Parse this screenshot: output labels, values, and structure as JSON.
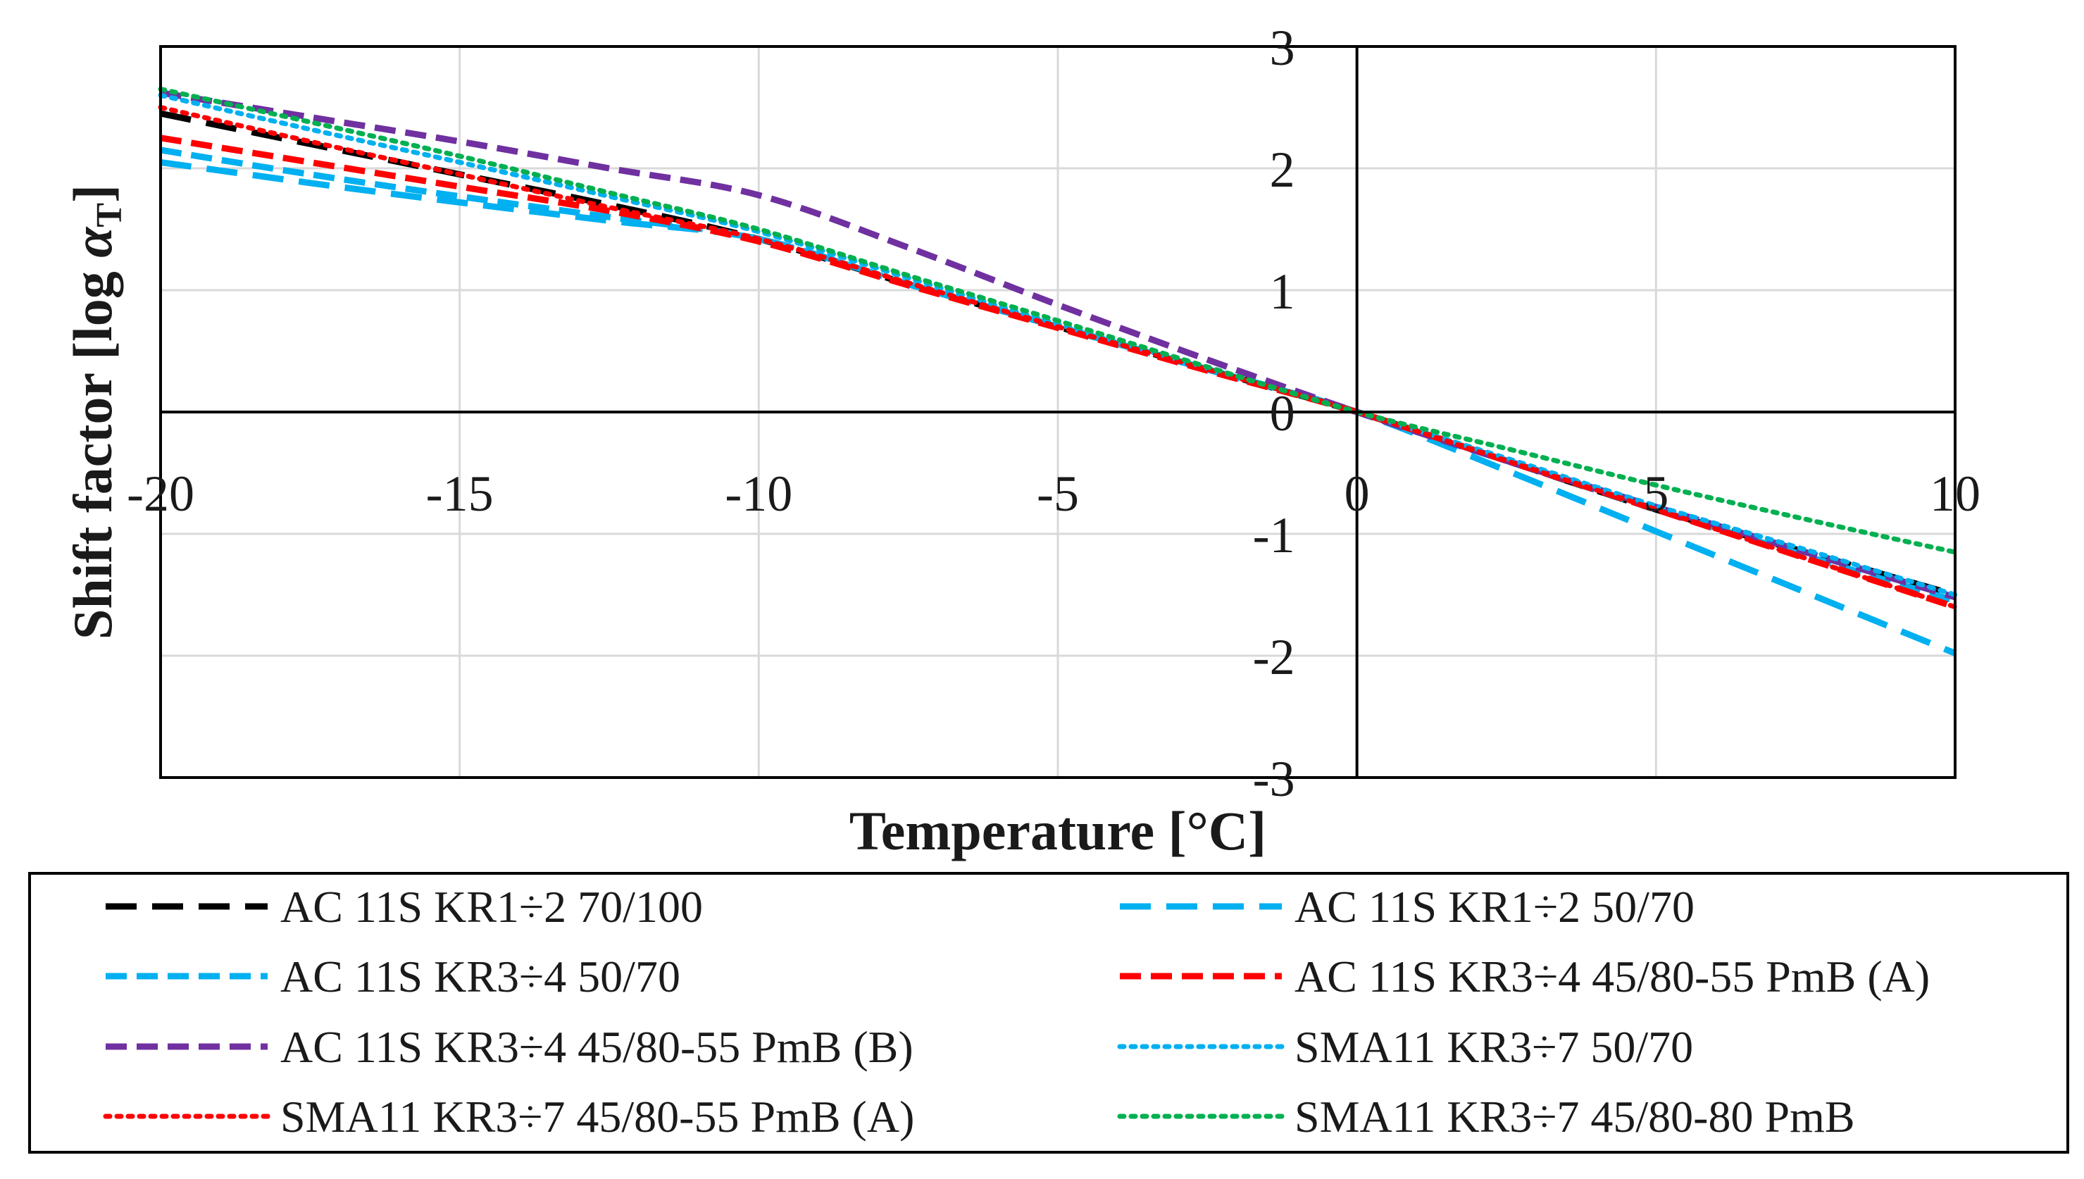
{
  "chart_data": {
    "type": "line",
    "title": "",
    "xlabel": "Temperature [°C]",
    "ylabel_main": "Shift factor [log ",
    "ylabel_symbol": "α",
    "ylabel_sub": "T",
    "ylabel_end": "]",
    "xlim": [
      -20,
      10
    ],
    "ylim": [
      -3,
      3
    ],
    "xticks": [
      -20,
      -15,
      -10,
      -5,
      0,
      5,
      10
    ],
    "yticks": [
      -3,
      -2,
      -1,
      0,
      1,
      2,
      3
    ],
    "xtick_labels": [
      "-20",
      "-15",
      "-10",
      "-5",
      "0",
      "5",
      "10"
    ],
    "ytick_labels": [
      "-3",
      "-2",
      "-1",
      "0",
      "1",
      "2",
      "3"
    ],
    "grid": true,
    "legend_position": "bottom",
    "series": [
      {
        "name": "AC 11S KR1÷2 70/100",
        "color": "#000000",
        "dash": "longdash",
        "x": [
          -20,
          -17.5,
          -15,
          -12.5,
          -10,
          -7.5,
          -5,
          -2.5,
          0,
          2.5,
          5,
          7.5,
          10
        ],
        "y": [
          2.45,
          2.2,
          1.95,
          1.7,
          1.42,
          1.05,
          0.7,
          0.35,
          0,
          -0.4,
          -0.8,
          -1.15,
          -1.5
        ]
      },
      {
        "name": "AC 11S KR1÷2 50/70",
        "color": "#00b0f0",
        "dash": "longdash",
        "x": [
          -20,
          -17.5,
          -15,
          -12.5,
          -10,
          -7.5,
          -5,
          -2.5,
          0,
          2.5,
          5,
          7.5,
          10
        ],
        "y": [
          2.05,
          1.88,
          1.72,
          1.57,
          1.42,
          1.05,
          0.7,
          0.35,
          0,
          -0.48,
          -0.98,
          -1.48,
          -1.98
        ]
      },
      {
        "name": "AC 11S KR3÷4 50/70",
        "color": "#00b0f0",
        "dash": "dash",
        "x": [
          -20,
          -17.5,
          -15,
          -12.5,
          -10,
          -7.5,
          -5,
          -2.5,
          0,
          2.5,
          5,
          7.5,
          10
        ],
        "y": [
          2.15,
          1.95,
          1.77,
          1.6,
          1.42,
          1.05,
          0.7,
          0.35,
          0,
          -0.4,
          -0.8,
          -1.18,
          -1.55
        ]
      },
      {
        "name": "AC 11S KR3÷4 45/80-55 PmB (A)",
        "color": "#ff0000",
        "dash": "dash",
        "x": [
          -20,
          -17.5,
          -15,
          -12.5,
          -10,
          -7.5,
          -5,
          -2.5,
          0,
          2.5,
          5,
          7.5,
          10
        ],
        "y": [
          2.25,
          2.05,
          1.85,
          1.65,
          1.4,
          1.04,
          0.69,
          0.34,
          0,
          -0.4,
          -0.8,
          -1.2,
          -1.6
        ]
      },
      {
        "name": "AC 11S KR3÷4 45/80-55 PmB (B)",
        "color": "#7030a0",
        "dash": "dash",
        "x": [
          -20,
          -17.5,
          -15,
          -12.5,
          -10,
          -7.5,
          -5,
          -2.5,
          0,
          2.5,
          5,
          7.5,
          10
        ],
        "y": [
          2.62,
          2.42,
          2.22,
          2.0,
          1.78,
          1.35,
          0.88,
          0.43,
          0,
          -0.4,
          -0.78,
          -1.15,
          -1.52
        ]
      },
      {
        "name": "SMA11 KR3÷7 50/70",
        "color": "#00b0f0",
        "dash": "dot",
        "x": [
          -20,
          -17.5,
          -15,
          -12.5,
          -10,
          -7.5,
          -5,
          -2.5,
          0,
          2.5,
          5,
          7.5,
          10
        ],
        "y": [
          2.6,
          2.32,
          2.05,
          1.77,
          1.48,
          1.1,
          0.72,
          0.36,
          0,
          -0.38,
          -0.77,
          -1.13,
          -1.5
        ]
      },
      {
        "name": "SMA11 KR3÷7 45/80-55 PmB (A)",
        "color": "#ff0000",
        "dash": "dot",
        "x": [
          -20,
          -17.5,
          -15,
          -12.5,
          -10,
          -7.5,
          -5,
          -2.5,
          0,
          2.5,
          5,
          7.5,
          10
        ],
        "y": [
          2.5,
          2.22,
          1.95,
          1.68,
          1.42,
          1.06,
          0.7,
          0.35,
          0,
          -0.4,
          -0.8,
          -1.2,
          -1.6
        ]
      },
      {
        "name": "SMA11 KR3÷7 45/80-80 PmB",
        "color": "#00b050",
        "dash": "dot",
        "x": [
          -20,
          -17.5,
          -15,
          -12.5,
          -10,
          -7.5,
          -5,
          -2.5,
          0,
          2.5,
          5,
          7.5,
          10
        ],
        "y": [
          2.65,
          2.38,
          2.1,
          1.8,
          1.5,
          1.12,
          0.75,
          0.37,
          0,
          -0.3,
          -0.6,
          -0.88,
          -1.15
        ]
      }
    ]
  }
}
